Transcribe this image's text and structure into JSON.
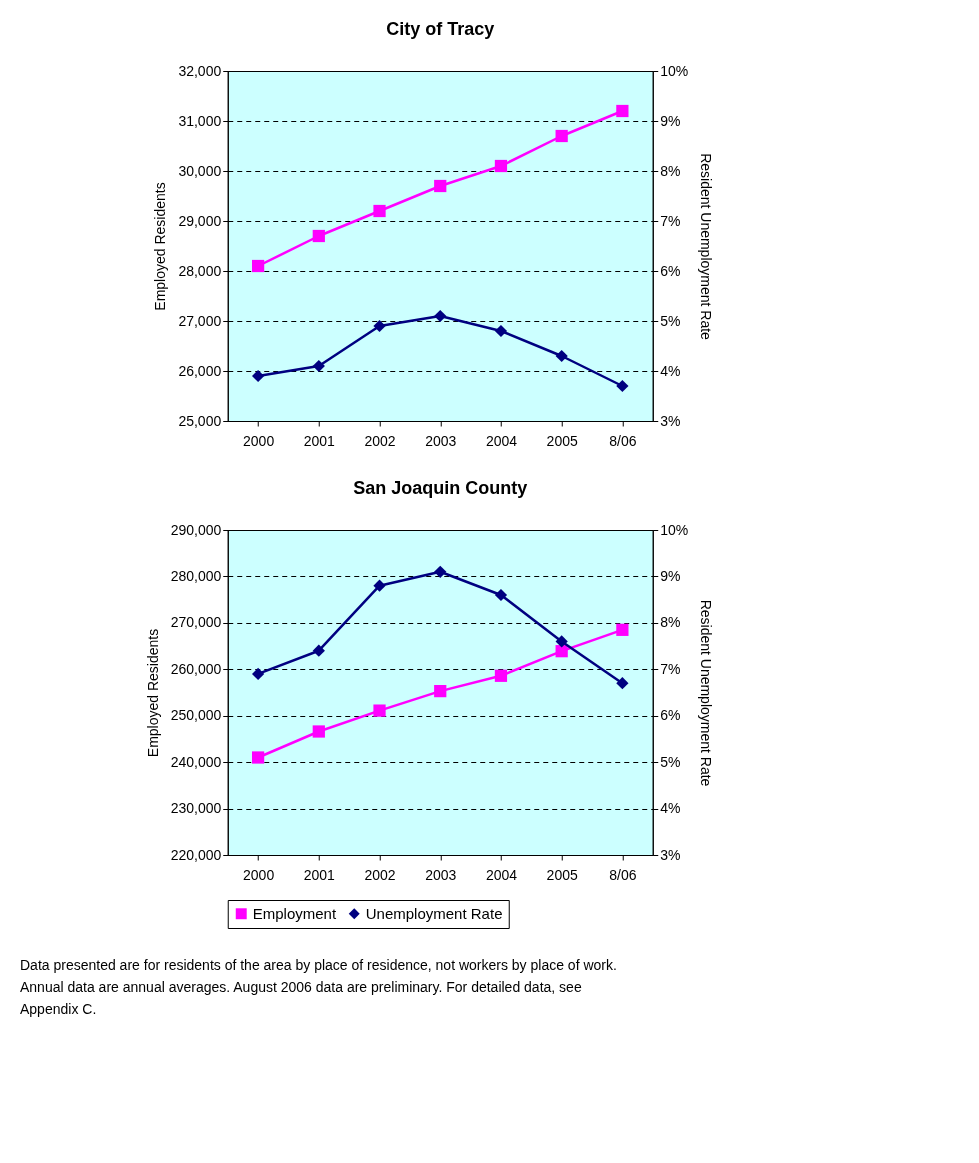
{
  "chart_data": [
    {
      "type": "line",
      "title": "City of Tracy",
      "ylabel": "Employed Residents",
      "y2label": "Resident Unemployment Rate",
      "categories": [
        "2000",
        "2001",
        "2002",
        "2003",
        "2004",
        "2005",
        "8/06"
      ],
      "series": [
        {
          "color": "#ff00ff",
          "marker": "square",
          "values": [
            28100,
            28700,
            29200,
            29700,
            30100,
            30700,
            31200
          ]
        },
        {
          "color": "#000080",
          "marker": "diamond",
          "axis": "y2",
          "values": [
            3.9,
            4.1,
            4.9,
            5.1,
            4.8,
            4.3,
            3.7
          ]
        }
      ],
      "ylim": [
        25000,
        32000
      ],
      "yticks": [
        {
          "value": 25000,
          "label": "25,000"
        },
        {
          "value": 26000,
          "label": "26,000"
        },
        {
          "value": 27000,
          "label": "27,000"
        },
        {
          "value": 28000,
          "label": "28,000"
        },
        {
          "value": 29000,
          "label": "29,000"
        },
        {
          "value": 30000,
          "label": "30,000"
        },
        {
          "value": 31000,
          "label": "31,000"
        },
        {
          "value": 32000,
          "label": "32,000"
        }
      ],
      "y2lim": [
        3,
        10
      ],
      "y2ticks": [
        {
          "value": 3,
          "label": "3%"
        },
        {
          "value": 4,
          "label": "4%"
        },
        {
          "value": 5,
          "label": "5%"
        },
        {
          "value": 6,
          "label": "6%"
        },
        {
          "value": 7,
          "label": "7%"
        },
        {
          "value": 8,
          "label": "8%"
        },
        {
          "value": 9,
          "label": "9%"
        },
        {
          "value": 10,
          "label": "10%"
        }
      ],
      "grid": "y",
      "legend": false
    },
    {
      "type": "line",
      "title": "San Joaquin County",
      "ylabel": "Employed Residents",
      "y2label": "Resident Unemployment Rate",
      "categories": [
        "2000",
        "2001",
        "2002",
        "2003",
        "2004",
        "2005",
        "8/06"
      ],
      "series": [
        {
          "name": "Employment",
          "color": "#ff00ff",
          "marker": "square",
          "values": [
            241000,
            246600,
            251100,
            255300,
            258600,
            263900,
            268500
          ]
        },
        {
          "name": "Unemployment Rate",
          "color": "#000080",
          "marker": "diamond",
          "axis": "y2",
          "values": [
            6.9,
            7.4,
            8.8,
            9.1,
            8.6,
            7.6,
            6.7
          ]
        }
      ],
      "ylim": [
        220000,
        290000
      ],
      "yticks": [
        {
          "value": 220000,
          "label": "220,000"
        },
        {
          "value": 230000,
          "label": "230,000"
        },
        {
          "value": 240000,
          "label": "240,000"
        },
        {
          "value": 250000,
          "label": "250,000"
        },
        {
          "value": 260000,
          "label": "260,000"
        },
        {
          "value": 270000,
          "label": "270,000"
        },
        {
          "value": 280000,
          "label": "280,000"
        },
        {
          "value": 290000,
          "label": "290,000"
        }
      ],
      "y2lim": [
        3,
        10
      ],
      "y2ticks": [
        {
          "value": 3,
          "label": "3%"
        },
        {
          "value": 4,
          "label": "4%"
        },
        {
          "value": 5,
          "label": "5%"
        },
        {
          "value": 6,
          "label": "6%"
        },
        {
          "value": 7,
          "label": "7%"
        },
        {
          "value": 8,
          "label": "8%"
        },
        {
          "value": 9,
          "label": "9%"
        },
        {
          "value": 10,
          "label": "10%"
        }
      ],
      "grid": "y",
      "legend": "bottom",
      "annotations": [
        "Data presented are for residents of the area by place of residence, not workers by place of work. Annual data are annual averages.  August 2006 data are preliminary. For detailed data, see Appendix C."
      ]
    }
  ]
}
